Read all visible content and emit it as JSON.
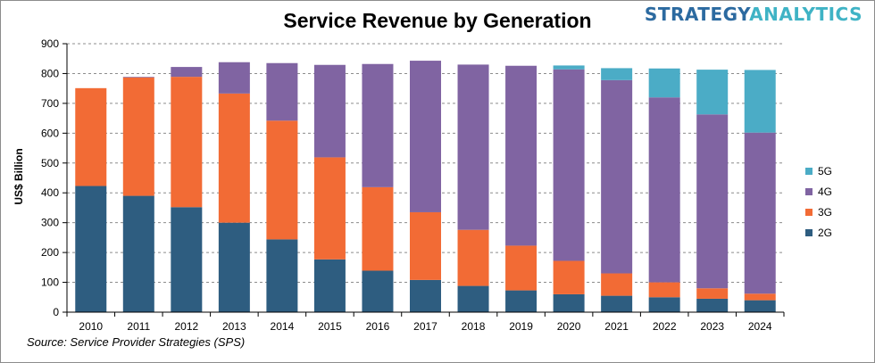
{
  "title": "Service Revenue by Generation",
  "brand": {
    "part1": "STRATEGY",
    "part2": "ANALYTICS"
  },
  "source": "Source:  Service Provider Strategies (SPS)",
  "chart_data": {
    "type": "bar",
    "stacked": true,
    "title": "Service Revenue by Generation",
    "xlabel": "",
    "ylabel": "US$ Billion",
    "ylim": [
      0,
      900
    ],
    "yticks": [
      "0",
      "100",
      "200",
      "300",
      "400",
      "500",
      "600",
      "700",
      "800",
      "900"
    ],
    "grid": "horizontal dashed",
    "legend_position": "right",
    "categories": [
      "2010",
      "2011",
      "2012",
      "2013",
      "2014",
      "2015",
      "2016",
      "2017",
      "2018",
      "2019",
      "2020",
      "2021",
      "2022",
      "2023",
      "2024"
    ],
    "series": [
      {
        "name": "2G",
        "color": "#2e5d80",
        "values": [
          423,
          390,
          352,
          300,
          244,
          177,
          139,
          108,
          88,
          73,
          60,
          55,
          50,
          45,
          40
        ]
      },
      {
        "name": "3G",
        "color": "#f26b35",
        "values": [
          328,
          397,
          437,
          433,
          398,
          342,
          280,
          227,
          188,
          150,
          112,
          75,
          50,
          35,
          22
        ]
      },
      {
        "name": "4G",
        "color": "#8064a2",
        "values": [
          0,
          2,
          33,
          105,
          193,
          310,
          413,
          508,
          554,
          603,
          642,
          648,
          620,
          583,
          540
        ]
      },
      {
        "name": "5G",
        "color": "#4bacc6",
        "values": [
          0,
          0,
          0,
          0,
          0,
          0,
          0,
          0,
          0,
          0,
          13,
          40,
          97,
          150,
          210
        ]
      }
    ]
  }
}
